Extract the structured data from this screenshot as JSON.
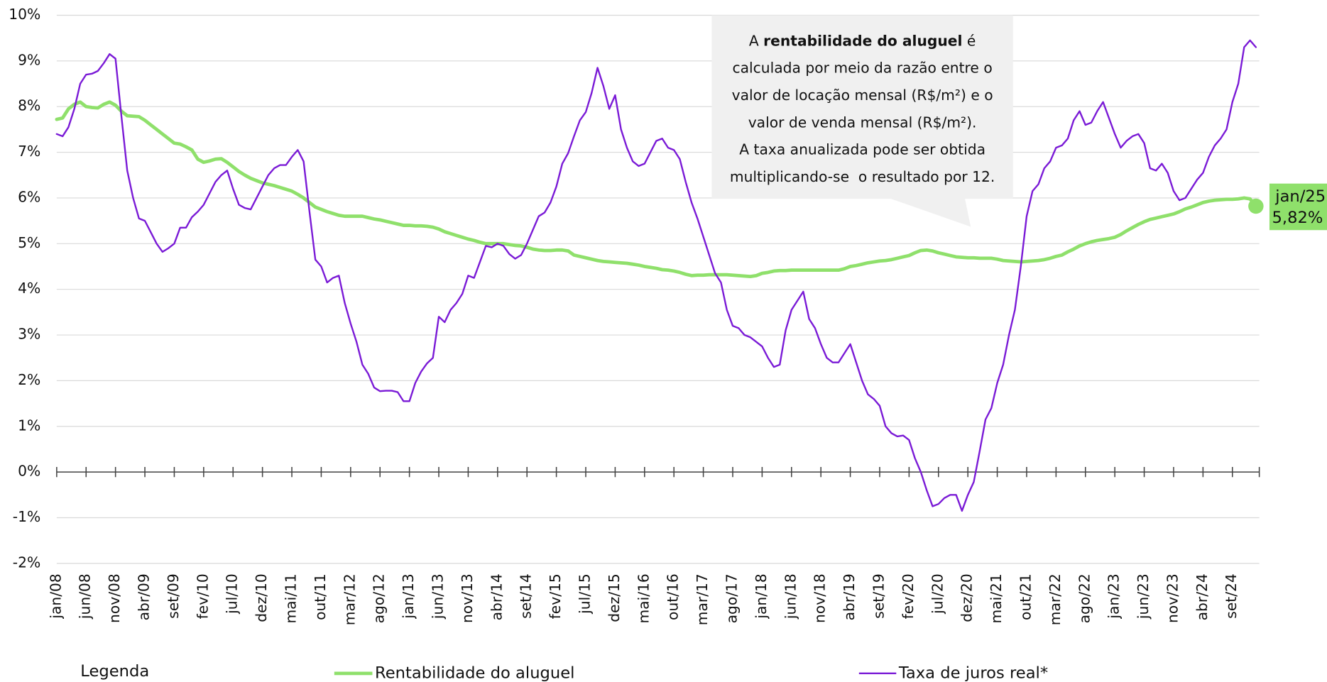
{
  "chart_data": {
    "type": "line",
    "categories": [
      "jan/08",
      null,
      null,
      null,
      null,
      "jun/08",
      null,
      null,
      null,
      null,
      "nov/08",
      null,
      null,
      null,
      null,
      "abr/09",
      null,
      null,
      null,
      null,
      "set/09",
      null,
      null,
      null,
      null,
      "fev/10",
      null,
      null,
      null,
      null,
      "jul/10",
      null,
      null,
      null,
      null,
      "dez/10",
      null,
      null,
      null,
      null,
      "mai/11",
      null,
      null,
      null,
      null,
      "out/11",
      null,
      null,
      null,
      null,
      "mar/12",
      null,
      null,
      null,
      null,
      "ago/12",
      null,
      null,
      null,
      null,
      "jan/13",
      null,
      null,
      null,
      null,
      "jun/13",
      null,
      null,
      null,
      null,
      "nov/13",
      null,
      null,
      null,
      null,
      "abr/14",
      null,
      null,
      null,
      null,
      "set/14",
      null,
      null,
      null,
      null,
      "fev/15",
      null,
      null,
      null,
      null,
      "jul/15",
      null,
      null,
      null,
      null,
      "dez/15",
      null,
      null,
      null,
      null,
      "mai/16",
      null,
      null,
      null,
      null,
      "out/16",
      null,
      null,
      null,
      null,
      "mar/17",
      null,
      null,
      null,
      null,
      "ago/17",
      null,
      null,
      null,
      null,
      "jan/18",
      null,
      null,
      null,
      null,
      "jun/18",
      null,
      null,
      null,
      null,
      "nov/18",
      null,
      null,
      null,
      null,
      "abr/19",
      null,
      null,
      null,
      null,
      "set/19",
      null,
      null,
      null,
      null,
      "fev/20",
      null,
      null,
      null,
      null,
      "jul/20",
      null,
      null,
      null,
      null,
      "dez/20",
      null,
      null,
      null,
      null,
      "mai/21",
      null,
      null,
      null,
      null,
      "out/21",
      null,
      null,
      null,
      null,
      "mar/22",
      null,
      null,
      null,
      null,
      "ago/22",
      null,
      null,
      null,
      null,
      "jan/23",
      null,
      null,
      null,
      null,
      "jun/23",
      null,
      null,
      null,
      null,
      "nov/23",
      null,
      null,
      null,
      null,
      "abr/24",
      null,
      null,
      null,
      null,
      "set/24",
      null,
      null,
      null,
      null
    ],
    "series": [
      {
        "name": "Rentabilidade do aluguel",
        "color": "#8fe06b",
        "values": [
          7.72,
          7.75,
          7.95,
          8.05,
          8.1,
          8.0,
          7.98,
          7.97,
          8.05,
          8.1,
          8.03,
          7.9,
          7.8,
          7.79,
          7.78,
          7.7,
          7.6,
          7.5,
          7.4,
          7.3,
          7.2,
          7.18,
          7.12,
          7.05,
          6.85,
          6.78,
          6.81,
          6.85,
          6.86,
          6.78,
          6.68,
          6.58,
          6.5,
          6.43,
          6.38,
          6.33,
          6.3,
          6.27,
          6.23,
          6.19,
          6.15,
          6.08,
          6.0,
          5.9,
          5.8,
          5.75,
          5.7,
          5.66,
          5.62,
          5.6,
          5.6,
          5.6,
          5.6,
          5.57,
          5.54,
          5.52,
          5.49,
          5.46,
          5.43,
          5.4,
          5.4,
          5.39,
          5.39,
          5.38,
          5.36,
          5.32,
          5.26,
          5.22,
          5.18,
          5.14,
          5.1,
          5.07,
          5.03,
          5.0,
          5.0,
          5.0,
          5.0,
          4.98,
          4.96,
          4.95,
          4.92,
          4.88,
          4.86,
          4.85,
          4.85,
          4.86,
          4.86,
          4.84,
          4.75,
          4.72,
          4.69,
          4.66,
          4.63,
          4.61,
          4.6,
          4.59,
          4.58,
          4.57,
          4.55,
          4.53,
          4.5,
          4.48,
          4.46,
          4.43,
          4.42,
          4.4,
          4.37,
          4.33,
          4.3,
          4.31,
          4.31,
          4.32,
          4.32,
          4.32,
          4.32,
          4.31,
          4.3,
          4.29,
          4.28,
          4.3,
          4.35,
          4.37,
          4.4,
          4.41,
          4.41,
          4.42,
          4.42,
          4.42,
          4.42,
          4.42,
          4.42,
          4.42,
          4.42,
          4.42,
          4.45,
          4.5,
          4.52,
          4.55,
          4.58,
          4.6,
          4.62,
          4.63,
          4.65,
          4.68,
          4.71,
          4.74,
          4.8,
          4.85,
          4.86,
          4.84,
          4.8,
          4.77,
          4.74,
          4.71,
          4.7,
          4.69,
          4.69,
          4.68,
          4.68,
          4.68,
          4.66,
          4.63,
          4.62,
          4.61,
          4.6,
          4.61,
          4.62,
          4.63,
          4.65,
          4.68,
          4.72,
          4.75,
          4.82,
          4.88,
          4.95,
          5.0,
          5.04,
          5.07,
          5.09,
          5.11,
          5.14,
          5.2,
          5.28,
          5.35,
          5.42,
          5.48,
          5.53,
          5.56,
          5.59,
          5.62,
          5.65,
          5.7,
          5.76,
          5.8,
          5.85,
          5.9,
          5.93,
          5.95,
          5.96,
          5.97,
          5.97,
          5.98,
          6.0,
          5.98,
          5.82
        ]
      },
      {
        "name": "Taxa de juros real*",
        "color": "#7a1ad6",
        "values": [
          7.4,
          7.35,
          7.55,
          7.95,
          8.5,
          8.7,
          8.72,
          8.78,
          8.95,
          9.15,
          9.05,
          7.8,
          6.6,
          6.0,
          5.55,
          5.5,
          5.25,
          5.0,
          4.82,
          4.9,
          5.0,
          5.35,
          5.35,
          5.58,
          5.7,
          5.85,
          6.1,
          6.35,
          6.5,
          6.6,
          6.2,
          5.85,
          5.78,
          5.75,
          6.0,
          6.25,
          6.5,
          6.65,
          6.72,
          6.72,
          6.9,
          7.05,
          6.8,
          5.7,
          4.65,
          4.5,
          4.15,
          4.25,
          4.3,
          3.7,
          3.25,
          2.85,
          2.35,
          2.15,
          1.85,
          1.77,
          1.78,
          1.78,
          1.75,
          1.55,
          1.55,
          1.95,
          2.2,
          2.38,
          2.5,
          3.4,
          3.28,
          3.55,
          3.7,
          3.9,
          4.3,
          4.25,
          4.6,
          4.95,
          4.92,
          5.0,
          4.95,
          4.77,
          4.67,
          4.75,
          5.0,
          5.3,
          5.6,
          5.68,
          5.9,
          6.25,
          6.75,
          6.98,
          7.35,
          7.7,
          7.88,
          8.3,
          8.85,
          8.45,
          7.95,
          8.25,
          7.5,
          7.1,
          6.8,
          6.7,
          6.75,
          7.0,
          7.25,
          7.3,
          7.1,
          7.05,
          6.85,
          6.35,
          5.9,
          5.55,
          5.15,
          4.75,
          4.35,
          4.15,
          3.55,
          3.2,
          3.15,
          3.0,
          2.95,
          2.85,
          2.75,
          2.5,
          2.3,
          2.35,
          3.1,
          3.55,
          3.75,
          3.95,
          3.35,
          3.15,
          2.8,
          2.5,
          2.4,
          2.4,
          2.6,
          2.8,
          2.4,
          2.0,
          1.7,
          1.6,
          1.45,
          1.0,
          0.85,
          0.78,
          0.8,
          0.7,
          0.3,
          0.0,
          -0.4,
          -0.75,
          -0.7,
          -0.57,
          -0.5,
          -0.5,
          -0.85,
          -0.5,
          -0.22,
          0.45,
          1.15,
          1.4,
          1.95,
          2.35,
          3.0,
          3.55,
          4.5,
          5.6,
          6.15,
          6.3,
          6.65,
          6.8,
          7.1,
          7.15,
          7.3,
          7.7,
          7.9,
          7.6,
          7.65,
          7.9,
          8.1,
          7.75,
          7.4,
          7.1,
          7.25,
          7.35,
          7.4,
          7.2,
          6.65,
          6.6,
          6.75,
          6.55,
          6.15,
          5.95,
          6.0,
          6.2,
          6.4,
          6.55,
          6.9,
          7.15,
          7.3,
          7.5,
          8.1,
          8.5,
          9.3,
          9.45,
          9.3
        ]
      }
    ],
    "ylim": [
      -2,
      10
    ],
    "yticks": [
      {
        "value": -2,
        "label": "-2%"
      },
      {
        "value": -1,
        "label": "-1%"
      },
      {
        "value": 0,
        "label": "0%"
      },
      {
        "value": 1,
        "label": "1%"
      },
      {
        "value": 2,
        "label": "2%"
      },
      {
        "value": 3,
        "label": "3%"
      },
      {
        "value": 4,
        "label": "4%"
      },
      {
        "value": 5,
        "label": "5%"
      },
      {
        "value": 6,
        "label": "6%"
      },
      {
        "value": 7,
        "label": "7%"
      },
      {
        "value": 8,
        "label": "8%"
      },
      {
        "value": 9,
        "label": "9%"
      },
      {
        "value": 10,
        "label": "10%"
      }
    ],
    "grid": true,
    "legend": "bottom",
    "legend_title": "Legenda",
    "end_annotation": {
      "category": "jan/25",
      "value_label": "5,82%",
      "color": "#8fe06b"
    },
    "note": {
      "first_line": [
        "A ",
        "rentabilidade do aluguel",
        " é"
      ],
      "lines": [
        "calculada por meio da razão entre o",
        "valor de locação mensal (R$/m²) e o",
        "valor de venda mensal (R$/m²).",
        "A taxa anualizada pode ser obtida",
        "multiplicando-se  o resultado por 12."
      ]
    }
  }
}
